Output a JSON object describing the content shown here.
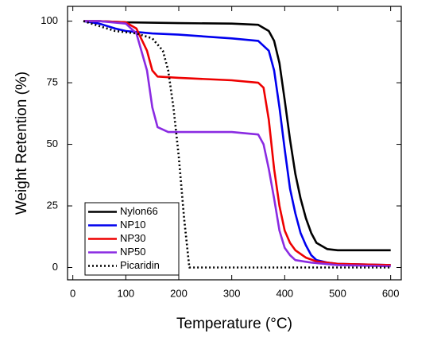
{
  "chart_data": {
    "type": "line",
    "xlabel": "Temperature (°C)",
    "ylabel": "Weight Retention (%)",
    "xlim": [
      -10,
      620
    ],
    "xticks": [
      0,
      100,
      200,
      300,
      400,
      500,
      600
    ],
    "ylim": [
      -5,
      106
    ],
    "yticks": [
      0,
      25,
      50,
      75,
      100
    ],
    "legend": "lower left",
    "series": [
      {
        "name": "Nylon66",
        "color": "#000000",
        "style": "solid",
        "x": [
          20,
          50,
          100,
          200,
          300,
          350,
          370,
          380,
          390,
          400,
          410,
          420,
          430,
          440,
          450,
          460,
          480,
          500,
          550,
          600
        ],
        "values": [
          100,
          100,
          99.5,
          99.2,
          99,
          98.5,
          96,
          92,
          83,
          68,
          52,
          38,
          28,
          20,
          14,
          10,
          7.5,
          7,
          7,
          7
        ]
      },
      {
        "name": "NP10",
        "color": "#0000ee",
        "style": "solid",
        "x": [
          20,
          50,
          80,
          100,
          150,
          200,
          300,
          350,
          370,
          380,
          390,
          400,
          410,
          420,
          430,
          440,
          450,
          460,
          480,
          500,
          600
        ],
        "values": [
          100,
          99,
          97,
          96,
          95,
          94.5,
          93,
          92,
          88,
          80,
          65,
          48,
          32,
          22,
          14,
          9,
          5,
          3,
          2,
          1.5,
          1
        ]
      },
      {
        "name": "NP30",
        "color": "#ee0000",
        "style": "solid",
        "x": [
          20,
          50,
          100,
          120,
          140,
          150,
          160,
          200,
          300,
          350,
          360,
          370,
          380,
          390,
          400,
          410,
          420,
          440,
          460,
          500,
          600
        ],
        "values": [
          100,
          100,
          99.5,
          97,
          88,
          80,
          77.5,
          77,
          76,
          75,
          73,
          60,
          40,
          25,
          15,
          10,
          7,
          4,
          2.5,
          1.5,
          1
        ]
      },
      {
        "name": "NP50",
        "color": "#8a2be2",
        "style": "solid",
        "x": [
          20,
          50,
          100,
          120,
          140,
          150,
          160,
          180,
          300,
          350,
          360,
          370,
          380,
          390,
          400,
          410,
          420,
          450,
          500,
          600
        ],
        "values": [
          100,
          100,
          99,
          95,
          80,
          65,
          57,
          55,
          55,
          54,
          50,
          40,
          28,
          15,
          8,
          5,
          3,
          2,
          1,
          0.5
        ]
      },
      {
        "name": "Picaridin",
        "color": "#000000",
        "style": "dotted",
        "x": [
          20,
          50,
          80,
          100,
          120,
          150,
          170,
          180,
          190,
          200,
          210,
          220,
          600
        ],
        "values": [
          100,
          98,
          96,
          95.5,
          95,
          93,
          88,
          80,
          65,
          45,
          20,
          0,
          0
        ]
      }
    ]
  }
}
